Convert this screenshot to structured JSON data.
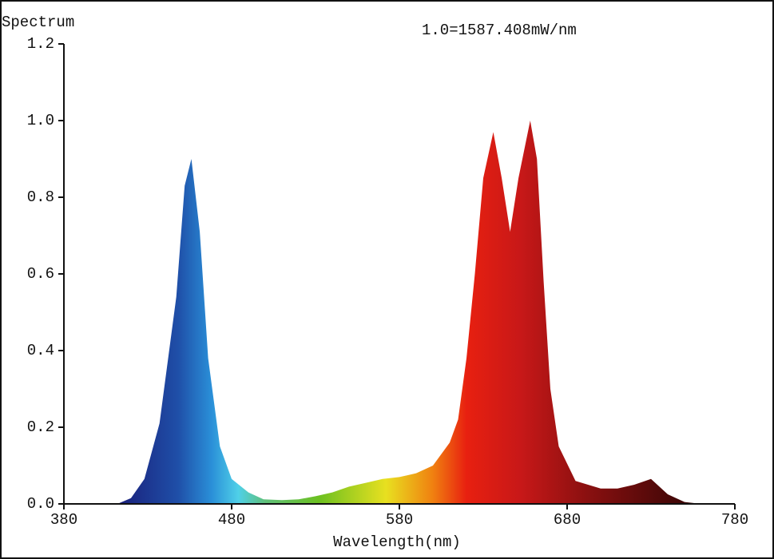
{
  "chart_data": {
    "type": "area",
    "title": "Spectrum",
    "annotation": "1.0=1587.408mW/nm",
    "x_label": "Wavelength(nm)",
    "x": [
      380,
      400,
      413,
      420,
      428,
      437,
      447,
      452,
      456,
      461,
      466,
      473,
      480,
      490,
      499,
      510,
      520,
      530,
      540,
      550,
      560,
      570,
      580,
      590,
      600,
      610,
      615,
      620,
      625,
      630,
      636,
      641,
      646,
      651,
      658,
      662,
      666,
      670,
      675,
      685,
      700,
      710,
      720,
      730,
      740,
      750,
      760,
      780
    ],
    "values": [
      0,
      0,
      0.002,
      0.015,
      0.065,
      0.21,
      0.54,
      0.83,
      0.9,
      0.71,
      0.38,
      0.15,
      0.065,
      0.03,
      0.012,
      0.01,
      0.012,
      0.02,
      0.03,
      0.045,
      0.055,
      0.065,
      0.07,
      0.08,
      0.1,
      0.16,
      0.22,
      0.38,
      0.6,
      0.85,
      0.97,
      0.85,
      0.71,
      0.85,
      1.0,
      0.9,
      0.58,
      0.3,
      0.15,
      0.06,
      0.04,
      0.04,
      0.05,
      0.065,
      0.025,
      0.005,
      0,
      0
    ],
    "xlim": [
      380,
      780
    ],
    "xticks": [
      380,
      480,
      580,
      680,
      780
    ],
    "ylim": [
      0,
      1.2
    ],
    "yticks": [
      {
        "value": 0,
        "label": "0.0"
      },
      0.2,
      0.4,
      0.6,
      0.8,
      {
        "value": 1,
        "label": "1.0"
      },
      1.2
    ]
  }
}
